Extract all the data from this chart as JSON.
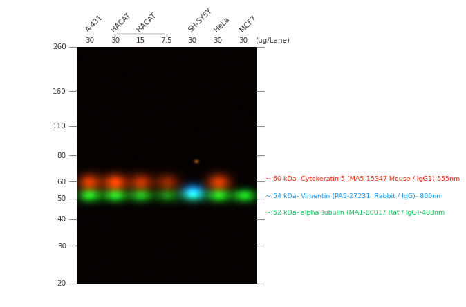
{
  "fig_bg": "#ffffff",
  "mw_markers": [
    260,
    160,
    110,
    80,
    60,
    50,
    40,
    30,
    20
  ],
  "lane_labels": [
    "A-431",
    "HACAT",
    "",
    "",
    "SH-SY5Y",
    "HeLa",
    "MCF7"
  ],
  "lane_ug": [
    "30",
    "30",
    "15",
    "7.5",
    "30",
    "30",
    "30"
  ],
  "ug_label": "(ug/Lane)",
  "red_lanes": [
    0,
    1,
    2,
    3,
    5
  ],
  "green_lanes": [
    0,
    1,
    2,
    3,
    4,
    5,
    6
  ],
  "blue_lanes": [
    4
  ],
  "legend_color1": "#ff2200",
  "legend_color2": "#1199ff",
  "legend_color3": "#00cc55",
  "legend_text1": "~ 60 kDa- Cytokeratin 5 (MA5-15347 Mouse / IgG1)-555nm",
  "legend_text2": "~ 54 kDa- Vimentin (PA5-27231  Rabbit / IgG)- 800nm",
  "legend_text3": "~ 52 kDa- alpha Tubulin (MA1-80017 Rat / IgG)-488nm",
  "num_lanes": 7,
  "red_band_kda": 60,
  "blue_band_kda": 54,
  "green_band_kda": 52
}
